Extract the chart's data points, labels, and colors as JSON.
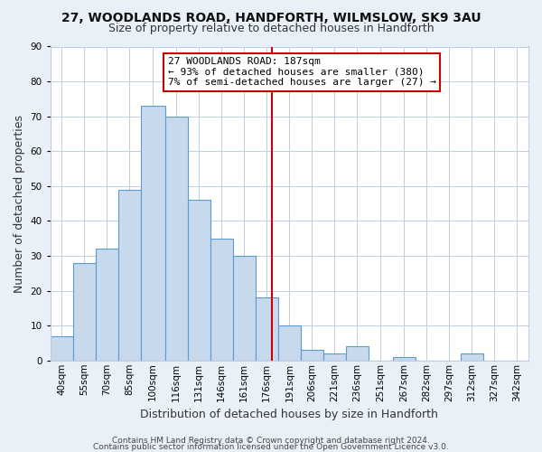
{
  "title": "27, WOODLANDS ROAD, HANDFORTH, WILMSLOW, SK9 3AU",
  "subtitle": "Size of property relative to detached houses in Handforth",
  "xlabel": "Distribution of detached houses by size in Handforth",
  "ylabel": "Number of detached properties",
  "bin_labels": [
    "40sqm",
    "55sqm",
    "70sqm",
    "85sqm",
    "100sqm",
    "116sqm",
    "131sqm",
    "146sqm",
    "161sqm",
    "176sqm",
    "191sqm",
    "206sqm",
    "221sqm",
    "236sqm",
    "251sqm",
    "267sqm",
    "282sqm",
    "297sqm",
    "312sqm",
    "327sqm",
    "342sqm"
  ],
  "bin_edges": [
    40,
    55,
    70,
    85,
    100,
    116,
    131,
    146,
    161,
    176,
    191,
    206,
    221,
    236,
    251,
    267,
    282,
    297,
    312,
    327,
    342,
    357
  ],
  "bar_heights": [
    7,
    28,
    32,
    49,
    73,
    70,
    46,
    35,
    30,
    18,
    10,
    3,
    2,
    4,
    0,
    1,
    0,
    0,
    2,
    0,
    0
  ],
  "bar_color": "#c9d9ec",
  "bar_edge_color": "#5b9bd5",
  "property_value": 187,
  "vline_color": "#cc0000",
  "annotation_line1": "27 WOODLANDS ROAD: 187sqm",
  "annotation_line2": "← 93% of detached houses are smaller (380)",
  "annotation_line3": "7% of semi-detached houses are larger (27) →",
  "ylim": [
    0,
    90
  ],
  "yticks": [
    0,
    10,
    20,
    30,
    40,
    50,
    60,
    70,
    80,
    90
  ],
  "bg_color": "#eaf0f8",
  "plot_bg_color": "#ffffff",
  "grid_color": "#c0cfe0",
  "footer_line1": "Contains HM Land Registry data © Crown copyright and database right 2024.",
  "footer_line2": "Contains public sector information licensed under the Open Government Licence v3.0.",
  "title_fontsize": 10,
  "subtitle_fontsize": 9,
  "xlabel_fontsize": 9,
  "ylabel_fontsize": 9,
  "tick_fontsize": 7.5,
  "annotation_fontsize": 8,
  "footer_fontsize": 6.5
}
